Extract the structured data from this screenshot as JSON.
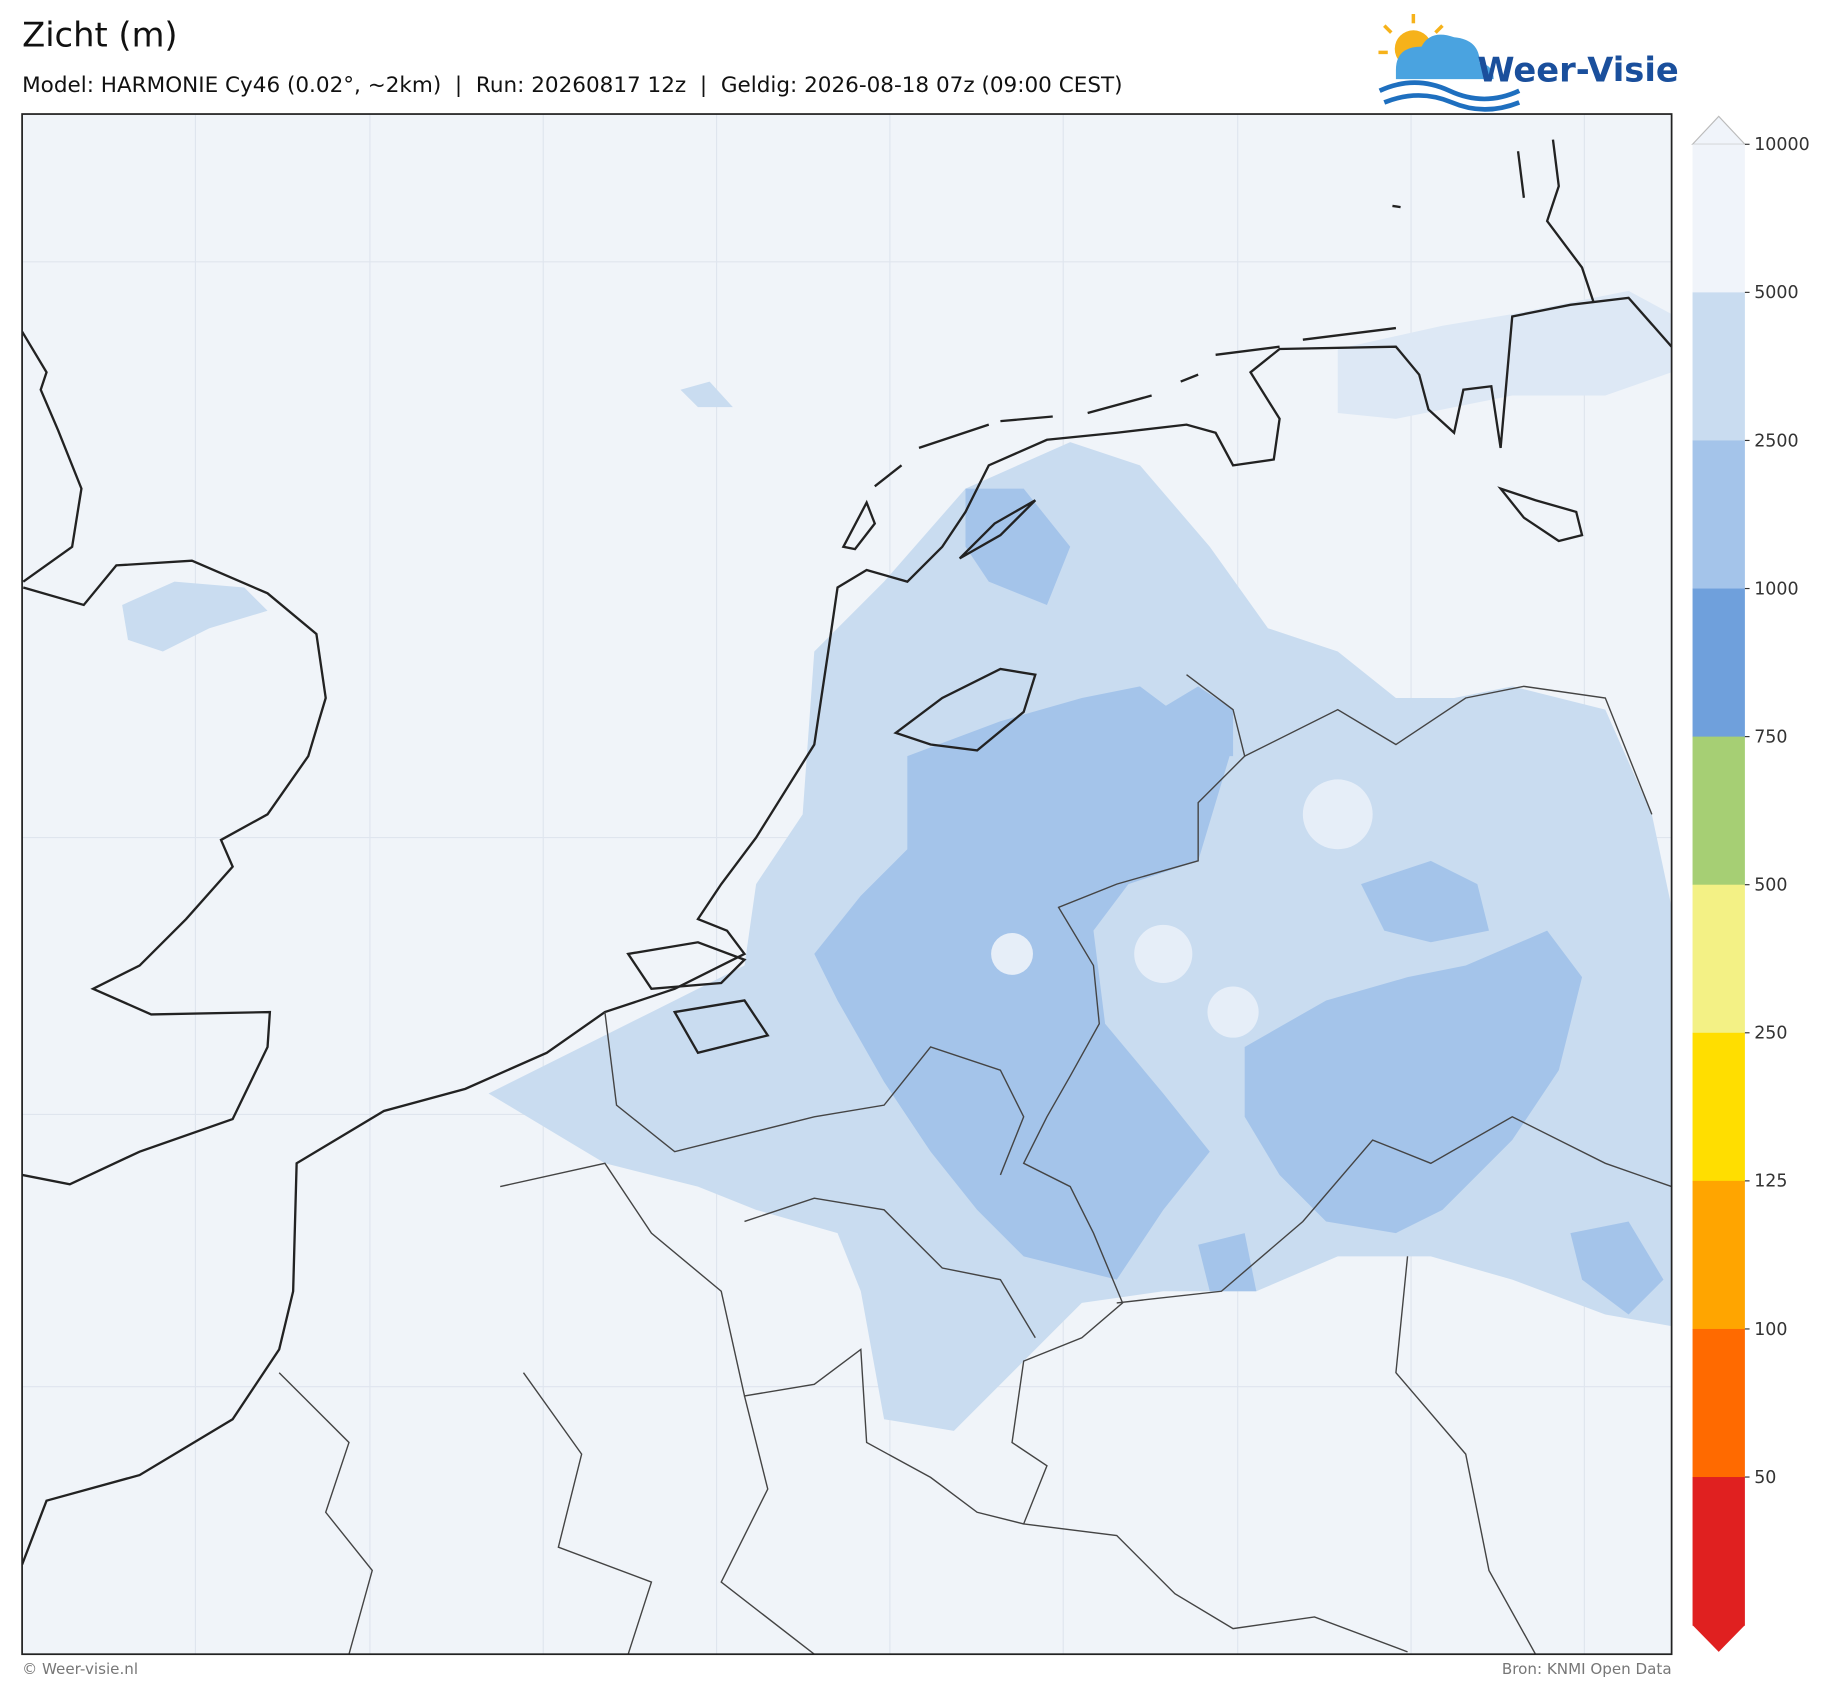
{
  "header": {
    "title": "Zicht (m)",
    "subtitle": "Model: HARMONIE Cy46 (0.02°, ~2km)  |  Run: 20260817 12z  |  Geldig: 2026-08-18 07z (09:00 CEST)",
    "logo": "Weer-Visie"
  },
  "colorbar": {
    "ticks": [
      10000,
      5000,
      2500,
      1000,
      750,
      500,
      250,
      125,
      100,
      50
    ],
    "colors": [
      "#f0f4fa",
      "#c9dcf0",
      "#a4c4ea",
      "#6fa0dc",
      "#a6cf74",
      "#f3f185",
      "#ffde00",
      "#ffa500",
      "#ff6a00",
      "#e02020"
    ]
  },
  "footer": {
    "left": "© Weer-visie.nl",
    "right": "Bron: KNMI Open Data"
  }
}
